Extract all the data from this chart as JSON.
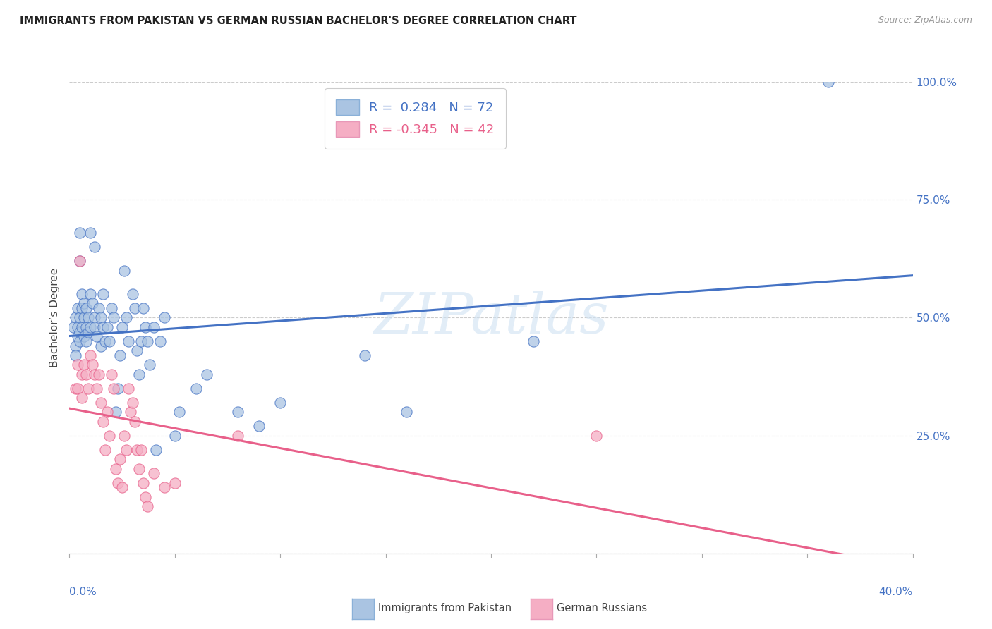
{
  "title": "IMMIGRANTS FROM PAKISTAN VS GERMAN RUSSIAN BACHELOR'S DEGREE CORRELATION CHART",
  "source": "Source: ZipAtlas.com",
  "ylabel": "Bachelor’s Degree",
  "y_ticks": [
    0.0,
    25.0,
    50.0,
    75.0,
    100.0
  ],
  "y_tick_labels": [
    "",
    "25.0%",
    "50.0%",
    "75.0%",
    "100.0%"
  ],
  "x_range": [
    0.0,
    40.0
  ],
  "y_range": [
    0.0,
    100.0
  ],
  "legend1_label": "R =  0.284   N = 72",
  "legend2_label": "R = -0.345   N = 42",
  "series1_color": "#aac4e2",
  "series2_color": "#f5aec4",
  "line1_color": "#4472c4",
  "line2_color": "#e8608a",
  "watermark": "ZIPatlas",
  "blue_points": [
    [
      0.2,
      48
    ],
    [
      0.3,
      50
    ],
    [
      0.3,
      44
    ],
    [
      0.3,
      42
    ],
    [
      0.4,
      52
    ],
    [
      0.4,
      48
    ],
    [
      0.4,
      46
    ],
    [
      0.5,
      50
    ],
    [
      0.5,
      47
    ],
    [
      0.5,
      45
    ],
    [
      0.6,
      55
    ],
    [
      0.6,
      52
    ],
    [
      0.6,
      48
    ],
    [
      0.7,
      53
    ],
    [
      0.7,
      50
    ],
    [
      0.7,
      46
    ],
    [
      0.8,
      52
    ],
    [
      0.8,
      48
    ],
    [
      0.8,
      45
    ],
    [
      0.9,
      50
    ],
    [
      0.9,
      47
    ],
    [
      1.0,
      68
    ],
    [
      1.0,
      55
    ],
    [
      1.0,
      48
    ],
    [
      1.1,
      53
    ],
    [
      1.2,
      65
    ],
    [
      1.2,
      50
    ],
    [
      1.2,
      48
    ],
    [
      1.3,
      46
    ],
    [
      1.4,
      52
    ],
    [
      1.5,
      50
    ],
    [
      1.5,
      44
    ],
    [
      1.6,
      55
    ],
    [
      1.6,
      48
    ],
    [
      1.7,
      45
    ],
    [
      1.8,
      48
    ],
    [
      1.9,
      45
    ],
    [
      2.0,
      52
    ],
    [
      2.1,
      50
    ],
    [
      2.2,
      30
    ],
    [
      2.3,
      35
    ],
    [
      2.4,
      42
    ],
    [
      2.5,
      48
    ],
    [
      2.6,
      60
    ],
    [
      2.7,
      50
    ],
    [
      2.8,
      45
    ],
    [
      3.0,
      55
    ],
    [
      3.1,
      52
    ],
    [
      3.2,
      43
    ],
    [
      3.3,
      38
    ],
    [
      3.4,
      45
    ],
    [
      3.5,
      52
    ],
    [
      3.6,
      48
    ],
    [
      3.7,
      45
    ],
    [
      3.8,
      40
    ],
    [
      4.0,
      48
    ],
    [
      4.1,
      22
    ],
    [
      4.3,
      45
    ],
    [
      4.5,
      50
    ],
    [
      5.0,
      25
    ],
    [
      5.2,
      30
    ],
    [
      0.5,
      68
    ],
    [
      0.5,
      62
    ],
    [
      6.0,
      35
    ],
    [
      6.5,
      38
    ],
    [
      8.0,
      30
    ],
    [
      9.0,
      27
    ],
    [
      10.0,
      32
    ],
    [
      14.0,
      42
    ],
    [
      16.0,
      30
    ],
    [
      22.0,
      45
    ],
    [
      36.0,
      100
    ]
  ],
  "pink_points": [
    [
      0.3,
      35
    ],
    [
      0.4,
      40
    ],
    [
      0.4,
      35
    ],
    [
      0.5,
      62
    ],
    [
      0.6,
      38
    ],
    [
      0.6,
      33
    ],
    [
      0.7,
      40
    ],
    [
      0.8,
      38
    ],
    [
      0.9,
      35
    ],
    [
      1.0,
      42
    ],
    [
      1.1,
      40
    ],
    [
      1.2,
      38
    ],
    [
      1.3,
      35
    ],
    [
      1.4,
      38
    ],
    [
      1.5,
      32
    ],
    [
      1.6,
      28
    ],
    [
      1.7,
      22
    ],
    [
      1.8,
      30
    ],
    [
      1.9,
      25
    ],
    [
      2.0,
      38
    ],
    [
      2.1,
      35
    ],
    [
      2.2,
      18
    ],
    [
      2.3,
      15
    ],
    [
      2.4,
      20
    ],
    [
      2.5,
      14
    ],
    [
      2.6,
      25
    ],
    [
      2.7,
      22
    ],
    [
      2.8,
      35
    ],
    [
      2.9,
      30
    ],
    [
      3.0,
      32
    ],
    [
      3.1,
      28
    ],
    [
      3.2,
      22
    ],
    [
      3.3,
      18
    ],
    [
      3.4,
      22
    ],
    [
      3.5,
      15
    ],
    [
      3.6,
      12
    ],
    [
      3.7,
      10
    ],
    [
      4.0,
      17
    ],
    [
      4.5,
      14
    ],
    [
      5.0,
      15
    ],
    [
      8.0,
      25
    ],
    [
      25.0,
      25
    ]
  ]
}
